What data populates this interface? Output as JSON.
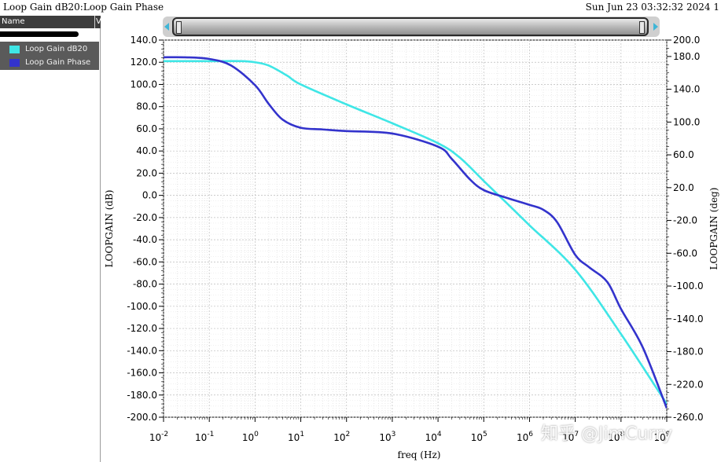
{
  "window": {
    "title": "Loop Gain dB20:Loop Gain Phase",
    "timestamp": "Sun Jun 23 03:32:32 2024  1"
  },
  "browser": {
    "header_name": "Name",
    "header_v": "V",
    "items": [
      {
        "label": "Loop Gain dB20",
        "color": "#3fe6e6"
      },
      {
        "label": "Loop Gain Phase",
        "color": "#3333cc"
      }
    ]
  },
  "watermark": "知乎 @JimCurry",
  "chart_data": {
    "type": "line",
    "xlabel": "freq (Hz)",
    "ylabel": "LOOPGAIN (dB)",
    "y2label": "LOOPGAIN (deg)",
    "x_scale": "log",
    "xlim": [
      0.01,
      1000000000
    ],
    "ylim": [
      -200,
      140
    ],
    "y2lim": [
      -260,
      200
    ],
    "grid": true,
    "x_ticks": [
      {
        "value": 0.01,
        "mant": "10",
        "exp": "-2"
      },
      {
        "value": 0.1,
        "mant": "10",
        "exp": "-1"
      },
      {
        "value": 1,
        "mant": "10",
        "exp": "0"
      },
      {
        "value": 10,
        "mant": "10",
        "exp": "1"
      },
      {
        "value": 100,
        "mant": "10",
        "exp": "2"
      },
      {
        "value": 1000,
        "mant": "10",
        "exp": "3"
      },
      {
        "value": 10000,
        "mant": "10",
        "exp": "4"
      },
      {
        "value": 100000,
        "mant": "10",
        "exp": "5"
      },
      {
        "value": 1000000,
        "mant": "10",
        "exp": "6"
      },
      {
        "value": 10000000,
        "mant": "10",
        "exp": "7"
      },
      {
        "value": 100000000,
        "mant": "10",
        "exp": "8"
      },
      {
        "value": 1000000000,
        "mant": "10",
        "exp": "9"
      }
    ],
    "y_ticks": [
      "140.0",
      "120.0",
      "100.0",
      "80.0",
      "60.0",
      "40.0",
      "20.0",
      "0.0",
      "-20.0",
      "-40.0",
      "-60.0",
      "-80.0",
      "-100.0",
      "-120.0",
      "-140.0",
      "-160.0",
      "-180.0",
      "-200.0"
    ],
    "y2_ticks": [
      "200.0",
      "180.0",
      "140.0",
      "100.0",
      "60.0",
      "20.0",
      "-20.0",
      "-60.0",
      "-100.0",
      "-140.0",
      "-180.0",
      "-220.0",
      "-260.0"
    ],
    "series": [
      {
        "name": "Loop Gain dB20",
        "axis": "left",
        "color": "#3fe6e6",
        "x": [
          0.01,
          0.1,
          0.5,
          1,
          2,
          5,
          10,
          100,
          1000,
          10000,
          30000,
          100000,
          300000,
          1000000,
          10000000,
          100000000,
          1000000000
        ],
        "y": [
          121,
          121,
          121,
          120,
          117,
          108,
          100,
          82,
          65,
          47,
          34,
          13,
          -6,
          -27,
          -67,
          -125,
          -188
        ]
      },
      {
        "name": "Loop Gain Phase",
        "axis": "right",
        "color": "#3333cc",
        "x": [
          0.01,
          0.03,
          0.1,
          0.3,
          1,
          2,
          4,
          10,
          30,
          100,
          1000,
          10000,
          20000,
          50000,
          100000,
          300000,
          1000000,
          2000000,
          4000000,
          10000000,
          20000000,
          50000000,
          100000000,
          300000000,
          1000000000
        ],
        "y": [
          179,
          179,
          177,
          169,
          145,
          122,
          103,
          93,
          91,
          89,
          86,
          70,
          55,
          30,
          17,
          8,
          -1,
          -7,
          -22,
          -62,
          -77,
          -95,
          -128,
          -175,
          -249
        ]
      }
    ]
  }
}
